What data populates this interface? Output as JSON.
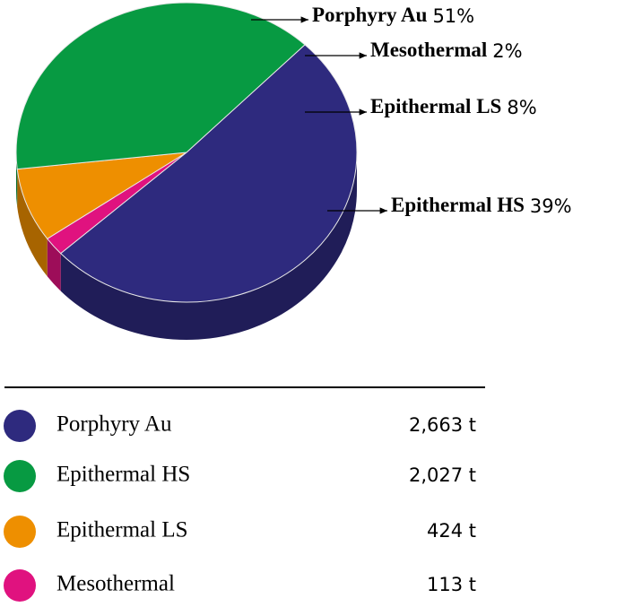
{
  "chart_data": {
    "type": "pie",
    "categories": [
      "Porphyry Au",
      "Mesothermal",
      "Epithermal LS",
      "Epithermal HS"
    ],
    "values": [
      51,
      2,
      8,
      39
    ],
    "value_labels": [
      "51%",
      "2%",
      "8%",
      "39%"
    ],
    "colors": [
      "#2e2a7e",
      "#e0127f",
      "#ee8f00",
      "#079a42"
    ]
  },
  "table": {
    "rows": [
      [
        "Porphyry Au",
        "2,663 t"
      ],
      [
        "Epithermal HS",
        "2,027 t"
      ],
      [
        "Epithermal LS",
        "424 t"
      ],
      [
        "Mesothermal",
        "113 t"
      ]
    ]
  }
}
